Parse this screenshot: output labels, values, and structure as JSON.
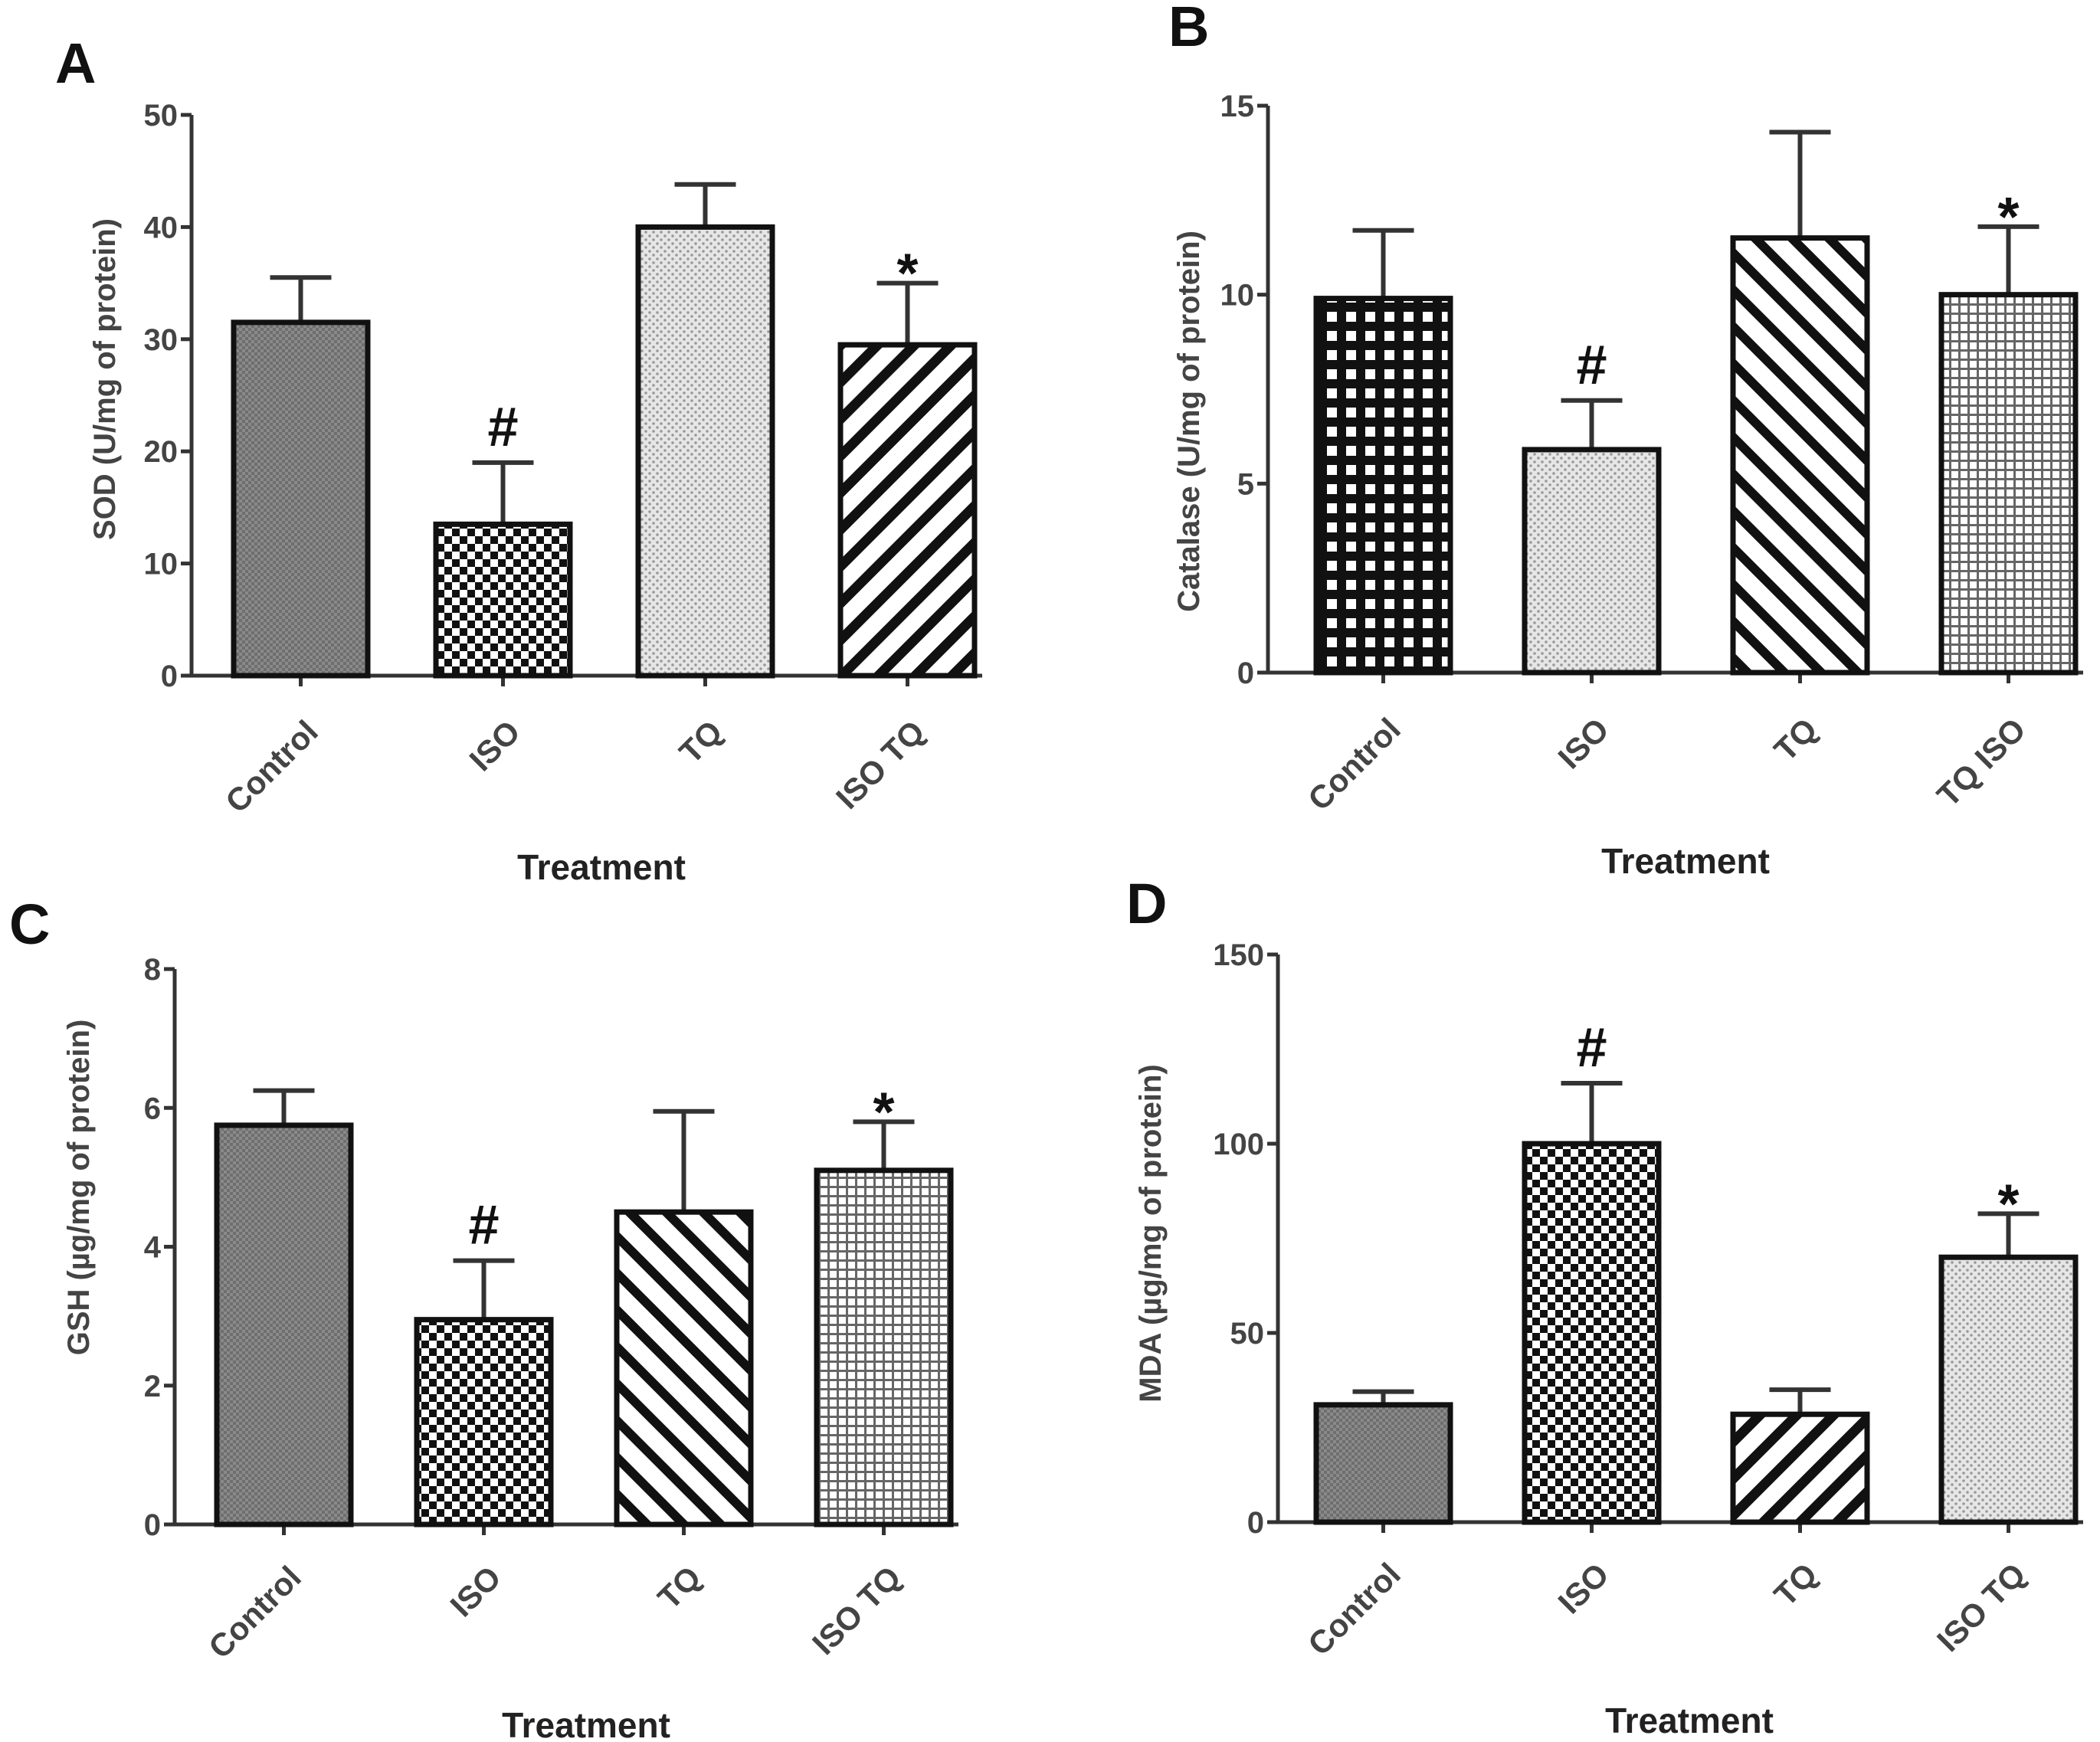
{
  "chart_data": [
    {
      "panel": "A",
      "type": "bar",
      "title": "",
      "xlabel": "Treatment",
      "ylabel": "SOD (U/mg of protein)",
      "ylim": [
        0,
        50
      ],
      "yticks": [
        0,
        10,
        20,
        30,
        40,
        50
      ],
      "categories": [
        "Control",
        "ISO",
        "TQ",
        "ISO TQ"
      ],
      "values": [
        31.5,
        13.5,
        40,
        29.5
      ],
      "errors": [
        4,
        5.5,
        3.8,
        5.5
      ],
      "annotations": [
        "",
        "#",
        "",
        "*"
      ],
      "patterns": [
        "dense",
        "checker",
        "dots",
        "diag"
      ]
    },
    {
      "panel": "B",
      "type": "bar",
      "title": "",
      "xlabel": "Treatment",
      "ylabel": "Catalase (U/mg of protein)",
      "ylim": [
        0,
        15
      ],
      "yticks": [
        0,
        5,
        10,
        15
      ],
      "categories": [
        "Control",
        "ISO",
        "TQ",
        "TQ ISO"
      ],
      "values": [
        9.9,
        5.9,
        11.5,
        10
      ],
      "errors": [
        1.8,
        1.3,
        2.8,
        1.8
      ],
      "annotations": [
        "",
        "#",
        "",
        "*"
      ],
      "patterns": [
        "grid",
        "dots",
        "diagback",
        "finegrid"
      ]
    },
    {
      "panel": "C",
      "type": "bar",
      "title": "",
      "xlabel": "Treatment",
      "ylabel": "GSH (µg/mg of protein)",
      "ylim": [
        0,
        8
      ],
      "yticks": [
        0,
        2,
        4,
        6,
        8
      ],
      "categories": [
        "Control",
        "ISO",
        "TQ",
        "ISO TQ"
      ],
      "values": [
        5.75,
        2.95,
        4.5,
        5.1
      ],
      "errors": [
        0.5,
        0.85,
        1.45,
        0.7
      ],
      "annotations": [
        "",
        "#",
        "",
        "*"
      ],
      "patterns": [
        "dense",
        "checker",
        "diagback",
        "finegrid"
      ]
    },
    {
      "panel": "D",
      "type": "bar",
      "title": "",
      "xlabel": "Treatment",
      "ylabel": "MDA (µg/mg of protein)",
      "ylim": [
        0,
        150
      ],
      "yticks": [
        0,
        50,
        100,
        150
      ],
      "categories": [
        "Control",
        "ISO",
        "TQ",
        "ISO TQ"
      ],
      "values": [
        31,
        100,
        28.5,
        70
      ],
      "errors": [
        3.5,
        16,
        6.5,
        11.5
      ],
      "annotations": [
        "",
        "#",
        "",
        "*"
      ],
      "patterns": [
        "dense",
        "checker",
        "diag",
        "dots"
      ]
    }
  ]
}
